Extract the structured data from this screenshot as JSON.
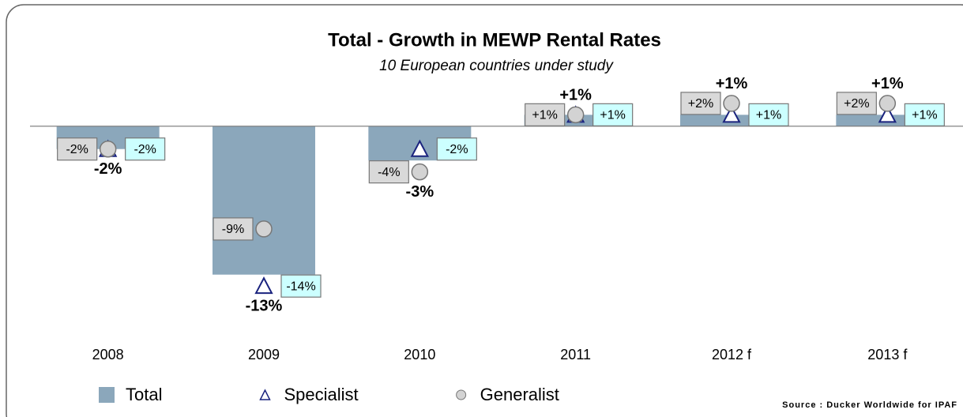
{
  "chart_data": {
    "type": "bar",
    "title": "Total - Growth in MEWP Rental Rates",
    "subtitle": "10 European countries under study",
    "categories": [
      "2008",
      "2009",
      "2010",
      "2011",
      "2012 f",
      "2013 f"
    ],
    "ylim": [
      -18,
      4
    ],
    "legend": "bottom",
    "source": "Source : Ducker Worldwide for IPAF",
    "series": [
      {
        "name": "Total",
        "marker": "bar",
        "color": "#8ba7bb",
        "values": [
          -2,
          -13,
          -3,
          1,
          1,
          1
        ],
        "value_labels": [
          "-2%",
          "-13%",
          "-3%",
          "+1%",
          "+1%",
          "+1%"
        ]
      },
      {
        "name": "Specialist",
        "marker": "triangle",
        "color": "#1a237e",
        "values": [
          -2,
          -14,
          -2,
          1,
          1,
          1
        ],
        "value_labels": [
          "-2%",
          "-14%",
          "-2%",
          "+1%",
          "+1%",
          "+1%"
        ]
      },
      {
        "name": "Generalist",
        "marker": "circle",
        "color": "#d3d3d3",
        "values": [
          -2,
          -9,
          -4,
          1,
          2,
          2
        ],
        "value_labels": [
          "-2%",
          "-9%",
          "-4%",
          "+1%",
          "+2%",
          "+2%"
        ]
      }
    ]
  }
}
